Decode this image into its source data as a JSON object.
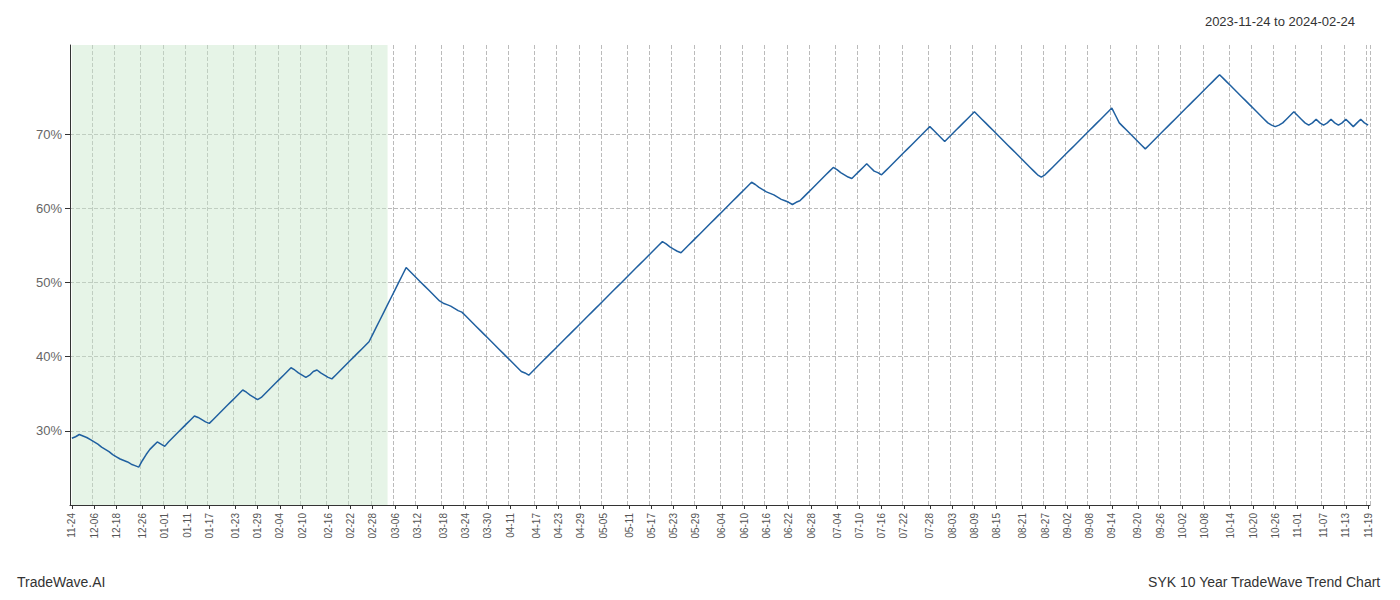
{
  "chart_data": {
    "type": "line",
    "title": "SYK 10 Year TradeWave Trend Chart",
    "subtitle": "2023-11-24 to 2024-02-24",
    "annotations": [
      "TradeWave.AI"
    ],
    "color": "#2060a0",
    "grid": true,
    "highlight": {
      "from": 0,
      "to": 85,
      "color": "#c8e6c9"
    },
    "ylim": [
      20,
      82
    ],
    "yticks": [
      {
        "value": 30,
        "label": "30%"
      },
      {
        "value": 40,
        "label": "40%"
      },
      {
        "value": 50,
        "label": "50%"
      },
      {
        "value": 60,
        "label": "60%"
      },
      {
        "value": 70,
        "label": "70%"
      }
    ],
    "categories": [
      "11-24",
      null,
      null,
      null,
      null,
      null,
      "12-06",
      null,
      null,
      null,
      null,
      null,
      "12-18",
      null,
      null,
      null,
      null,
      null,
      null,
      "12-26",
      null,
      null,
      null,
      null,
      null,
      "01-01",
      null,
      null,
      null,
      null,
      null,
      "01-11",
      null,
      null,
      null,
      null,
      null,
      "01-17",
      null,
      null,
      null,
      null,
      null,
      null,
      "01-23",
      null,
      null,
      null,
      null,
      null,
      "01-29",
      null,
      null,
      null,
      null,
      null,
      "02-04",
      null,
      null,
      null,
      null,
      null,
      "02-10",
      null,
      null,
      null,
      null,
      null,
      null,
      "02-16",
      null,
      null,
      null,
      null,
      null,
      "02-22",
      null,
      null,
      null,
      null,
      null,
      "02-28",
      null,
      null,
      null,
      null,
      null,
      "03-06",
      null,
      null,
      null,
      null,
      null,
      "03-12",
      null,
      null,
      null,
      null,
      null,
      null,
      "03-18",
      null,
      null,
      null,
      null,
      null,
      "03-24",
      null,
      null,
      null,
      null,
      null,
      "03-30",
      null,
      null,
      null,
      null,
      null,
      "04-11",
      null,
      null,
      null,
      null,
      null,
      null,
      "04-17",
      null,
      null,
      null,
      null,
      null,
      "04-23",
      null,
      null,
      null,
      null,
      null,
      "04-29",
      null,
      null,
      null,
      null,
      null,
      "05-05",
      null,
      null,
      null,
      null,
      null,
      null,
      "05-11",
      null,
      null,
      null,
      null,
      null,
      "05-17",
      null,
      null,
      null,
      null,
      null,
      "05-23",
      null,
      null,
      null,
      null,
      null,
      "05-29",
      null,
      null,
      null,
      null,
      null,
      null,
      "06-04",
      null,
      null,
      null,
      null,
      null,
      "06-10",
      null,
      null,
      null,
      null,
      null,
      "06-16",
      null,
      null,
      null,
      null,
      null,
      "06-22",
      null,
      null,
      null,
      null,
      null,
      "06-28",
      null,
      null,
      null,
      null,
      null,
      null,
      "07-04",
      null,
      null,
      null,
      null,
      null,
      "07-10",
      null,
      null,
      null,
      null,
      null,
      "07-16",
      null,
      null,
      null,
      null,
      null,
      "07-22",
      null,
      null,
      null,
      null,
      null,
      null,
      "07-28",
      null,
      null,
      null,
      null,
      null,
      "08-03",
      null,
      null,
      null,
      null,
      null,
      "08-09",
      null,
      null,
      null,
      null,
      null,
      "08-15",
      null,
      null,
      null,
      null,
      null,
      null,
      "08-21",
      null,
      null,
      null,
      null,
      null,
      "08-27",
      null,
      null,
      null,
      null,
      null,
      "09-02",
      null,
      null,
      null,
      null,
      null,
      "09-08",
      null,
      null,
      null,
      null,
      null,
      "09-14",
      null,
      null,
      null,
      null,
      null,
      null,
      "09-20",
      null,
      null,
      null,
      null,
      null,
      "09-26",
      null,
      null,
      null,
      null,
      null,
      "10-02",
      null,
      null,
      null,
      null,
      null,
      "10-08",
      null,
      null,
      null,
      null,
      null,
      null,
      "10-14",
      null,
      null,
      null,
      null,
      null,
      "10-20",
      null,
      null,
      null,
      null,
      null,
      "10-26",
      null,
      null,
      null,
      null,
      null,
      "11-01",
      null,
      null,
      null,
      null,
      null,
      null,
      "11-07",
      null,
      null,
      null,
      null,
      null,
      "11-13",
      null,
      null,
      null,
      null,
      null,
      "11-19"
    ],
    "values": [
      29.0,
      29.2,
      29.5,
      29.3,
      29.1,
      28.8,
      28.5,
      28.2,
      27.8,
      27.5,
      27.2,
      26.8,
      26.5,
      26.2,
      26.0,
      25.8,
      25.5,
      25.3,
      25.1,
      26.0,
      26.8,
      27.5,
      28.0,
      28.5,
      28.2,
      27.9,
      28.5,
      29.0,
      29.5,
      30.0,
      30.5,
      31.0,
      31.5,
      32.0,
      31.8,
      31.5,
      31.2,
      31.0,
      31.5,
      32.0,
      32.5,
      33.0,
      33.5,
      34.0,
      34.5,
      35.0,
      35.5,
      35.2,
      34.8,
      34.5,
      34.2,
      34.5,
      35.0,
      35.5,
      36.0,
      36.5,
      37.0,
      37.5,
      38.0,
      38.5,
      38.2,
      37.8,
      37.5,
      37.2,
      37.5,
      38.0,
      38.2,
      37.8,
      37.5,
      37.2,
      37.0,
      37.5,
      38.0,
      38.5,
      39.0,
      39.5,
      40.0,
      40.5,
      41.0,
      41.5,
      42.0,
      43.0,
      44.0,
      45.0,
      46.0,
      47.0,
      48.0,
      49.0,
      50.0,
      51.0,
      52.0,
      51.5,
      51.0,
      50.5,
      50.0,
      49.5,
      49.0,
      48.5,
      48.0,
      47.5,
      47.2,
      47.0,
      46.8,
      46.5,
      46.2,
      46.0,
      45.5,
      45.0,
      44.5,
      44.0,
      43.5,
      43.0,
      42.5,
      42.0,
      41.5,
      41.0,
      40.5,
      40.0,
      39.5,
      39.0,
      38.5,
      38.0,
      37.8,
      37.5,
      38.0,
      38.5,
      39.0,
      39.5,
      40.0,
      40.5,
      41.0,
      41.5,
      42.0,
      42.5,
      43.0,
      43.5,
      44.0,
      44.5,
      45.0,
      45.5,
      46.0,
      46.5,
      47.0,
      47.5,
      48.0,
      48.5,
      49.0,
      49.5,
      50.0,
      50.5,
      51.0,
      51.5,
      52.0,
      52.5,
      53.0,
      53.5,
      54.0,
      54.5,
      55.0,
      55.5,
      55.2,
      54.8,
      54.5,
      54.2,
      54.0,
      54.5,
      55.0,
      55.5,
      56.0,
      56.5,
      57.0,
      57.5,
      58.0,
      58.5,
      59.0,
      59.5,
      60.0,
      60.5,
      61.0,
      61.5,
      62.0,
      62.5,
      63.0,
      63.5,
      63.2,
      62.8,
      62.5,
      62.2,
      62.0,
      61.8,
      61.5,
      61.2,
      61.0,
      60.8,
      60.5,
      60.8,
      61.0,
      61.5,
      62.0,
      62.5,
      63.0,
      63.5,
      64.0,
      64.5,
      65.0,
      65.5,
      65.2,
      64.8,
      64.5,
      64.2,
      64.0,
      64.5,
      65.0,
      65.5,
      66.0,
      65.5,
      65.0,
      64.8,
      64.5,
      65.0,
      65.5,
      66.0,
      66.5,
      67.0,
      67.5,
      68.0,
      68.5,
      69.0,
      69.5,
      70.0,
      70.5,
      71.0,
      70.5,
      70.0,
      69.5,
      69.0,
      69.5,
      70.0,
      70.5,
      71.0,
      71.5,
      72.0,
      72.5,
      73.0,
      72.5,
      72.0,
      71.5,
      71.0,
      70.5,
      70.0,
      69.5,
      69.0,
      68.5,
      68.0,
      67.5,
      67.0,
      66.5,
      66.0,
      65.5,
      65.0,
      64.5,
      64.2,
      64.5,
      65.0,
      65.5,
      66.0,
      66.5,
      67.0,
      67.5,
      68.0,
      68.5,
      69.0,
      69.5,
      70.0,
      70.5,
      71.0,
      71.5,
      72.0,
      72.5,
      73.0,
      73.5,
      72.5,
      71.5,
      71.0,
      70.5,
      70.0,
      69.5,
      69.0,
      68.5,
      68.0,
      68.5,
      69.0,
      69.5,
      70.0,
      70.5,
      71.0,
      71.5,
      72.0,
      72.5,
      73.0,
      73.5,
      74.0,
      74.5,
      75.0,
      75.5,
      76.0,
      76.5,
      77.0,
      77.5,
      78.0,
      77.5,
      77.0,
      76.5,
      76.0,
      75.5,
      75.0,
      74.5,
      74.0,
      73.5,
      73.0,
      72.5,
      72.0,
      71.5,
      71.2,
      71.0,
      71.2,
      71.5,
      72.0,
      72.5,
      73.0,
      72.5,
      72.0,
      71.5,
      71.2,
      71.5,
      72.0,
      71.5,
      71.2,
      71.5,
      72.0,
      71.5,
      71.2,
      71.5,
      72.0,
      71.5,
      71.0,
      71.5,
      72.0,
      71.5,
      71.2
    ]
  }
}
